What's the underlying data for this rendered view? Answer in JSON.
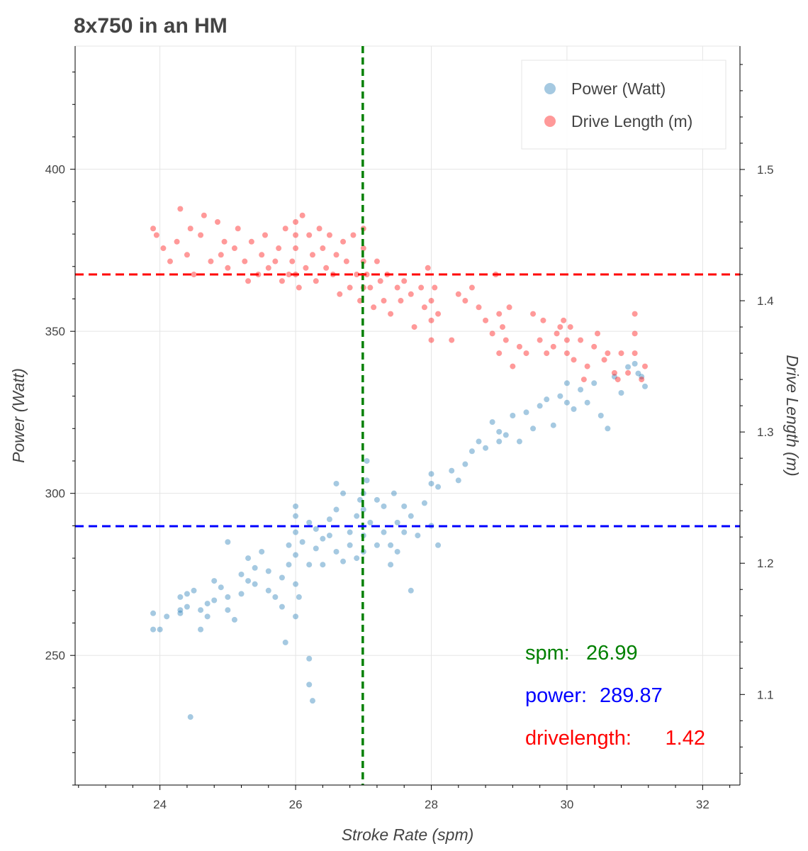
{
  "chart_data": {
    "type": "scatter",
    "title": "8x750 in an HM",
    "xlabel": "Stroke Rate (spm)",
    "ylabel": "Power (Watt)",
    "y2label": "Drive Length (m)",
    "xlim": [
      22.75,
      32.55
    ],
    "ylim": [
      210,
      438
    ],
    "y2lim": [
      1.031,
      1.594
    ],
    "xticks": [
      24,
      26,
      28,
      30,
      32
    ],
    "yticks": [
      250,
      300,
      350,
      400
    ],
    "y2ticks": [
      1.1,
      1.2,
      1.3,
      1.4,
      1.5
    ],
    "grid": true,
    "legend_position": "top-right",
    "series": [
      {
        "name": "Power (Watt)",
        "axis": "left",
        "color": "#1f77b4",
        "points": [
          [
            23.9,
            263
          ],
          [
            23.9,
            258
          ],
          [
            24.0,
            258
          ],
          [
            24.1,
            262
          ],
          [
            24.3,
            263
          ],
          [
            24.3,
            264
          ],
          [
            24.3,
            268
          ],
          [
            24.4,
            265
          ],
          [
            24.4,
            269
          ],
          [
            24.45,
            231
          ],
          [
            24.5,
            270
          ],
          [
            24.6,
            264
          ],
          [
            24.6,
            258
          ],
          [
            24.7,
            266
          ],
          [
            24.7,
            262
          ],
          [
            24.8,
            267
          ],
          [
            24.8,
            273
          ],
          [
            24.9,
            271
          ],
          [
            25.0,
            268
          ],
          [
            25.0,
            264
          ],
          [
            25.0,
            285
          ],
          [
            25.1,
            261
          ],
          [
            25.2,
            275
          ],
          [
            25.2,
            269
          ],
          [
            25.3,
            273
          ],
          [
            25.3,
            280
          ],
          [
            25.4,
            277
          ],
          [
            25.4,
            272
          ],
          [
            25.5,
            282
          ],
          [
            25.6,
            270
          ],
          [
            25.6,
            276
          ],
          [
            25.7,
            268
          ],
          [
            25.8,
            274
          ],
          [
            25.8,
            265
          ],
          [
            25.85,
            254
          ],
          [
            25.9,
            278
          ],
          [
            25.9,
            284
          ],
          [
            26.0,
            288
          ],
          [
            26.0,
            293
          ],
          [
            26.0,
            281
          ],
          [
            26.0,
            272
          ],
          [
            26.0,
            262
          ],
          [
            26.0,
            296
          ],
          [
            26.05,
            268
          ],
          [
            26.1,
            285
          ],
          [
            26.2,
            291
          ],
          [
            26.2,
            278
          ],
          [
            26.2,
            249
          ],
          [
            26.2,
            241
          ],
          [
            26.25,
            236
          ],
          [
            26.3,
            289
          ],
          [
            26.3,
            283
          ],
          [
            26.4,
            278
          ],
          [
            26.4,
            286
          ],
          [
            26.5,
            292
          ],
          [
            26.5,
            287
          ],
          [
            26.6,
            282
          ],
          [
            26.6,
            303
          ],
          [
            26.6,
            295
          ],
          [
            26.7,
            279
          ],
          [
            26.7,
            300
          ],
          [
            26.8,
            288
          ],
          [
            26.8,
            284
          ],
          [
            26.9,
            293
          ],
          [
            26.9,
            280
          ],
          [
            26.95,
            298
          ],
          [
            27.0,
            300
          ],
          [
            27.0,
            295
          ],
          [
            27.0,
            287
          ],
          [
            27.0,
            282
          ],
          [
            27.05,
            310
          ],
          [
            27.05,
            304
          ],
          [
            27.1,
            291
          ],
          [
            27.2,
            284
          ],
          [
            27.2,
            298
          ],
          [
            27.3,
            288
          ],
          [
            27.3,
            296
          ],
          [
            27.4,
            284
          ],
          [
            27.4,
            278
          ],
          [
            27.45,
            300
          ],
          [
            27.5,
            291
          ],
          [
            27.5,
            282
          ],
          [
            27.6,
            296
          ],
          [
            27.6,
            288
          ],
          [
            27.7,
            270
          ],
          [
            27.7,
            293
          ],
          [
            27.8,
            287
          ],
          [
            27.9,
            297
          ],
          [
            28.0,
            303
          ],
          [
            28.0,
            290
          ],
          [
            28.0,
            306
          ],
          [
            28.1,
            284
          ],
          [
            28.1,
            302
          ],
          [
            28.3,
            307
          ],
          [
            28.4,
            304
          ],
          [
            28.5,
            309
          ],
          [
            28.6,
            313
          ],
          [
            28.7,
            316
          ],
          [
            28.8,
            314
          ],
          [
            28.9,
            322
          ],
          [
            29.0,
            319
          ],
          [
            29.0,
            316
          ],
          [
            29.1,
            318
          ],
          [
            29.2,
            324
          ],
          [
            29.3,
            316
          ],
          [
            29.4,
            325
          ],
          [
            29.5,
            320
          ],
          [
            29.6,
            327
          ],
          [
            29.7,
            329
          ],
          [
            29.8,
            321
          ],
          [
            29.9,
            330
          ],
          [
            30.0,
            334
          ],
          [
            30.0,
            328
          ],
          [
            30.1,
            326
          ],
          [
            30.2,
            332
          ],
          [
            30.3,
            328
          ],
          [
            30.4,
            334
          ],
          [
            30.5,
            324
          ],
          [
            30.6,
            320
          ],
          [
            30.7,
            336
          ],
          [
            30.8,
            331
          ],
          [
            30.9,
            339
          ],
          [
            31.0,
            340
          ],
          [
            31.05,
            337
          ],
          [
            31.1,
            336
          ],
          [
            31.15,
            333
          ]
        ]
      },
      {
        "name": "Drive Length (m)",
        "axis": "right",
        "color": "#ff0000",
        "points": [
          [
            23.9,
            1.455
          ],
          [
            23.95,
            1.45
          ],
          [
            24.05,
            1.44
          ],
          [
            24.15,
            1.43
          ],
          [
            24.25,
            1.445
          ],
          [
            24.3,
            1.47
          ],
          [
            24.4,
            1.435
          ],
          [
            24.45,
            1.455
          ],
          [
            24.5,
            1.42
          ],
          [
            24.6,
            1.45
          ],
          [
            24.65,
            1.465
          ],
          [
            24.75,
            1.43
          ],
          [
            24.85,
            1.46
          ],
          [
            24.9,
            1.435
          ],
          [
            24.95,
            1.445
          ],
          [
            25.0,
            1.425
          ],
          [
            25.1,
            1.44
          ],
          [
            25.15,
            1.455
          ],
          [
            25.25,
            1.43
          ],
          [
            25.3,
            1.415
          ],
          [
            25.35,
            1.445
          ],
          [
            25.45,
            1.42
          ],
          [
            25.5,
            1.435
          ],
          [
            25.55,
            1.45
          ],
          [
            25.6,
            1.425
          ],
          [
            25.7,
            1.43
          ],
          [
            25.75,
            1.44
          ],
          [
            25.8,
            1.415
          ],
          [
            25.85,
            1.455
          ],
          [
            25.9,
            1.42
          ],
          [
            25.95,
            1.43
          ],
          [
            26.0,
            1.46
          ],
          [
            26.0,
            1.44
          ],
          [
            26.0,
            1.42
          ],
          [
            26.0,
            1.45
          ],
          [
            26.05,
            1.41
          ],
          [
            26.1,
            1.465
          ],
          [
            26.15,
            1.425
          ],
          [
            26.2,
            1.45
          ],
          [
            26.25,
            1.435
          ],
          [
            26.3,
            1.415
          ],
          [
            26.35,
            1.455
          ],
          [
            26.4,
            1.44
          ],
          [
            26.45,
            1.425
          ],
          [
            26.5,
            1.45
          ],
          [
            26.55,
            1.42
          ],
          [
            26.6,
            1.435
          ],
          [
            26.65,
            1.405
          ],
          [
            26.7,
            1.445
          ],
          [
            26.75,
            1.43
          ],
          [
            26.8,
            1.41
          ],
          [
            26.85,
            1.45
          ],
          [
            26.9,
            1.42
          ],
          [
            26.95,
            1.4
          ],
          [
            27.0,
            1.455
          ],
          [
            27.0,
            1.43
          ],
          [
            27.0,
            1.41
          ],
          [
            27.0,
            1.44
          ],
          [
            27.05,
            1.42
          ],
          [
            27.1,
            1.41
          ],
          [
            27.15,
            1.395
          ],
          [
            27.2,
            1.43
          ],
          [
            27.25,
            1.415
          ],
          [
            27.3,
            1.4
          ],
          [
            27.35,
            1.42
          ],
          [
            27.4,
            1.39
          ],
          [
            27.5,
            1.41
          ],
          [
            27.55,
            1.4
          ],
          [
            27.6,
            1.415
          ],
          [
            27.7,
            1.405
          ],
          [
            27.75,
            1.38
          ],
          [
            27.85,
            1.41
          ],
          [
            27.9,
            1.395
          ],
          [
            27.95,
            1.425
          ],
          [
            28.0,
            1.385
          ],
          [
            28.0,
            1.4
          ],
          [
            28.0,
            1.37
          ],
          [
            28.05,
            1.41
          ],
          [
            28.1,
            1.39
          ],
          [
            28.3,
            1.37
          ],
          [
            28.4,
            1.405
          ],
          [
            28.5,
            1.4
          ],
          [
            28.6,
            1.41
          ],
          [
            28.7,
            1.395
          ],
          [
            28.8,
            1.385
          ],
          [
            28.9,
            1.375
          ],
          [
            28.95,
            1.42
          ],
          [
            29.0,
            1.39
          ],
          [
            29.0,
            1.36
          ],
          [
            29.05,
            1.38
          ],
          [
            29.1,
            1.37
          ],
          [
            29.15,
            1.395
          ],
          [
            29.2,
            1.35
          ],
          [
            29.3,
            1.365
          ],
          [
            29.4,
            1.36
          ],
          [
            29.5,
            1.39
          ],
          [
            29.6,
            1.37
          ],
          [
            29.65,
            1.385
          ],
          [
            29.7,
            1.36
          ],
          [
            29.8,
            1.365
          ],
          [
            29.85,
            1.375
          ],
          [
            29.9,
            1.38
          ],
          [
            29.95,
            1.385
          ],
          [
            30.0,
            1.37
          ],
          [
            30.0,
            1.36
          ],
          [
            30.05,
            1.38
          ],
          [
            30.1,
            1.355
          ],
          [
            30.2,
            1.37
          ],
          [
            30.25,
            1.34
          ],
          [
            30.3,
            1.35
          ],
          [
            30.4,
            1.365
          ],
          [
            30.45,
            1.375
          ],
          [
            30.55,
            1.355
          ],
          [
            30.6,
            1.36
          ],
          [
            30.7,
            1.345
          ],
          [
            30.75,
            1.34
          ],
          [
            30.8,
            1.36
          ],
          [
            30.9,
            1.345
          ],
          [
            31.0,
            1.39
          ],
          [
            31.0,
            1.375
          ],
          [
            31.0,
            1.36
          ],
          [
            31.1,
            1.34
          ],
          [
            31.15,
            1.35
          ]
        ]
      }
    ],
    "reference_lines": [
      {
        "orientation": "vertical",
        "axis": "x",
        "value": 26.99,
        "color": "#008000"
      },
      {
        "orientation": "horizontal",
        "axis": "left",
        "value": 289.87,
        "color": "#0000ff"
      },
      {
        "orientation": "horizontal",
        "axis": "right",
        "value": 1.42,
        "color": "#ff0000"
      }
    ],
    "annotations": [
      {
        "label": "spm:",
        "value": "26.99",
        "color": "#008000"
      },
      {
        "label": "power:",
        "value": "289.87",
        "color": "#0000ff"
      },
      {
        "label": "drivelength:",
        "value": "1.42",
        "color": "#ff0000"
      }
    ]
  }
}
